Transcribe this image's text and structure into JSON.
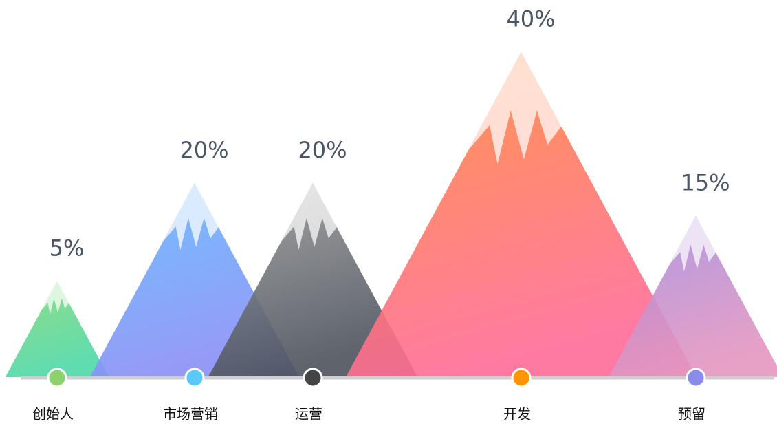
{
  "chart_data": {
    "type": "mountain",
    "categories": [
      "创始人",
      "市场营销",
      "运营",
      "开发",
      "预留"
    ],
    "values": [
      5,
      20,
      20,
      40,
      15
    ],
    "value_labels": [
      "5%",
      "20%",
      "20%",
      "40%",
      "15%"
    ],
    "colors": [
      "#8dd06f",
      "#5ac8fa",
      "#444444",
      "#ff9500",
      "#8c8ce8"
    ],
    "fills": [
      [
        "#86d97a",
        "#4ed8a8"
      ],
      [
        "#62baff",
        "#8a8ff6"
      ],
      [
        "#9c9c9c",
        "#4c525c"
      ],
      [
        "#ff8a36",
        "#ff6c98"
      ],
      [
        "#a48ee0",
        "#e496c0"
      ]
    ]
  }
}
